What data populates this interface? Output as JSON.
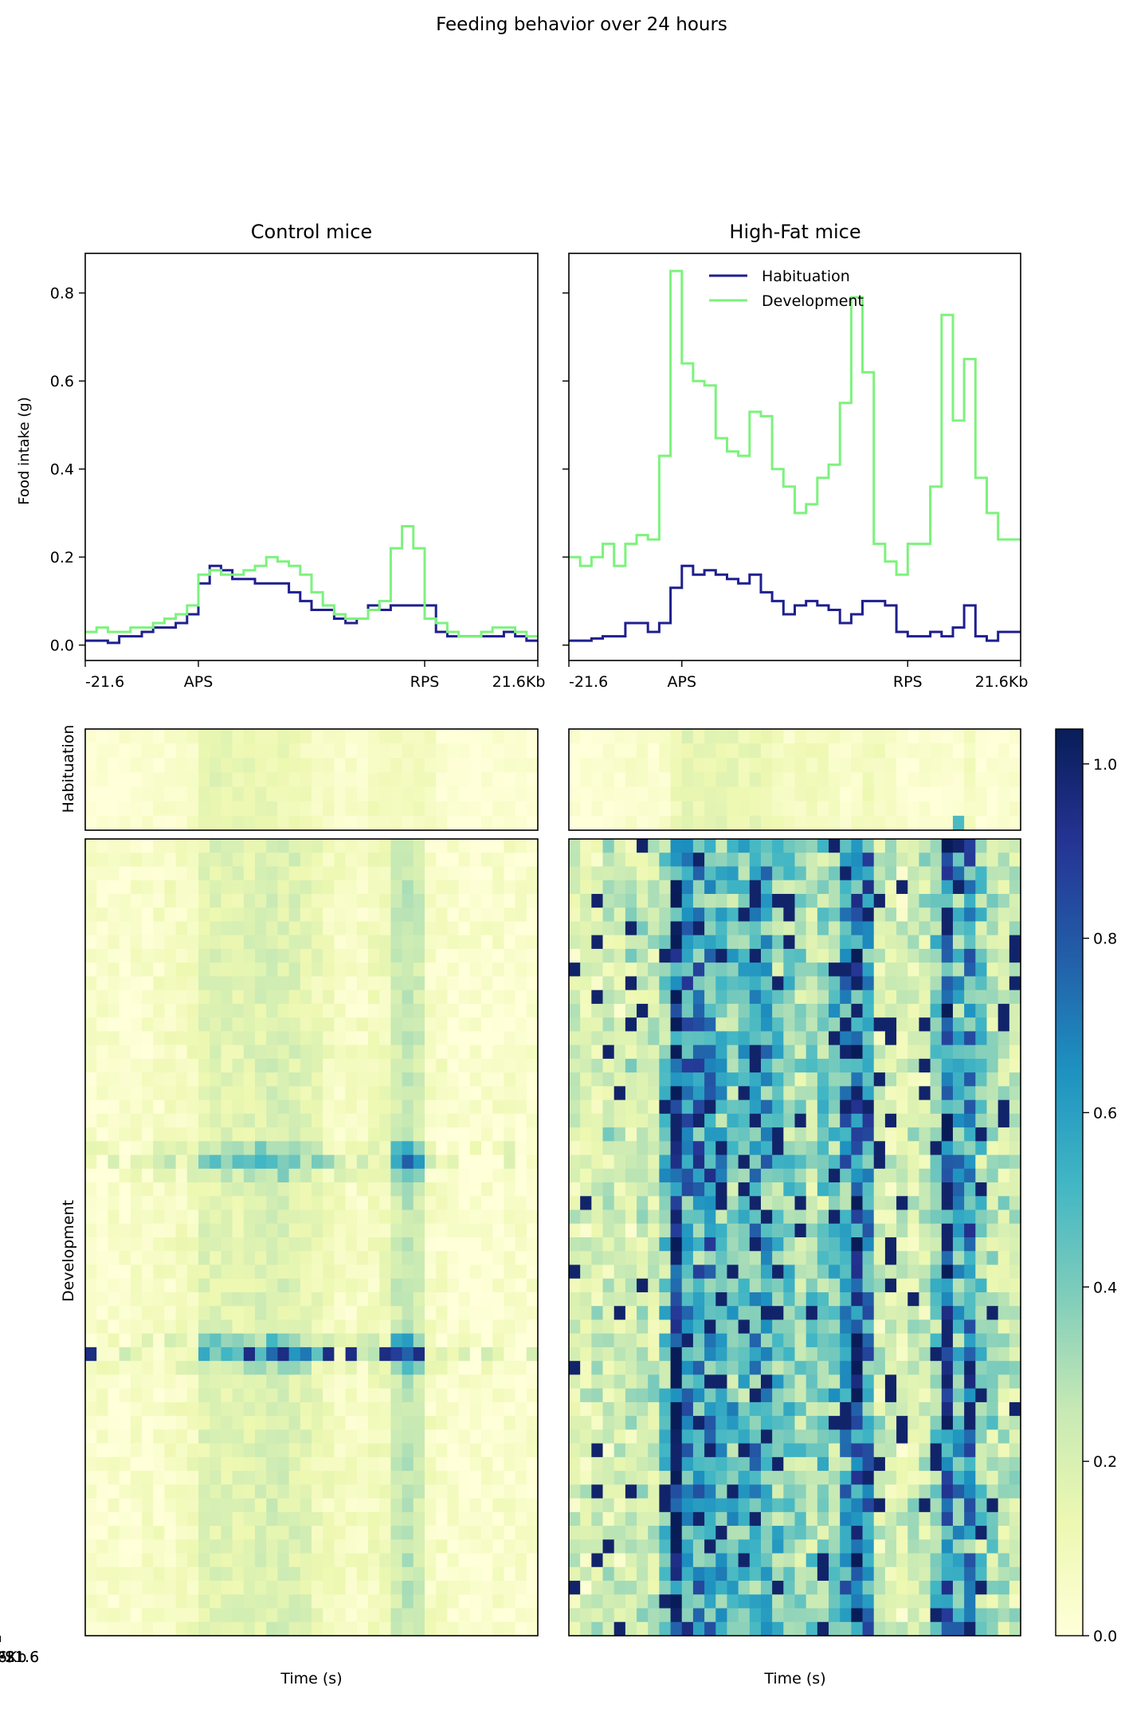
{
  "figure": {
    "suptitle": "Feeding behavior over 24 hours",
    "legend_position": "upper-center of right line panel"
  },
  "colors": {
    "habituation": "#1f1f8f",
    "development": "#7df27d",
    "heatmap_low": "#ffffd9",
    "heatmap_high": "#081d58"
  },
  "chart_data": [
    {
      "type": "line",
      "panel": "control-line",
      "title": "Control mice",
      "xlabel": "",
      "ylabel": "Food intake (g)",
      "ylim": [
        -0.035,
        0.89
      ],
      "yticks": [
        "0.0",
        "0.2",
        "0.4",
        "0.6",
        "0.8"
      ],
      "ytick_values": [
        0.0,
        0.2,
        0.4,
        0.6,
        0.8
      ],
      "xticks": [
        "-21.6",
        "APS",
        "RPS",
        "21.6Kb"
      ],
      "xtick_bins": [
        0,
        10,
        30,
        40
      ],
      "nbins": 40,
      "drawstyle": "steps",
      "series": [
        {
          "name": "Habituation",
          "color": "#1f1f8f",
          "values": [
            0.01,
            0.01,
            0.005,
            0.02,
            0.02,
            0.03,
            0.04,
            0.04,
            0.05,
            0.07,
            0.14,
            0.18,
            0.17,
            0.15,
            0.15,
            0.14,
            0.14,
            0.14,
            0.12,
            0.1,
            0.08,
            0.08,
            0.06,
            0.05,
            0.06,
            0.09,
            0.08,
            0.09,
            0.09,
            0.09,
            0.09,
            0.03,
            0.02,
            0.02,
            0.02,
            0.02,
            0.02,
            0.03,
            0.02,
            0.01
          ]
        },
        {
          "name": "Development",
          "color": "#7df27d",
          "values": [
            0.03,
            0.04,
            0.03,
            0.03,
            0.04,
            0.04,
            0.05,
            0.06,
            0.07,
            0.09,
            0.16,
            0.17,
            0.16,
            0.16,
            0.17,
            0.18,
            0.2,
            0.19,
            0.18,
            0.16,
            0.12,
            0.09,
            0.07,
            0.06,
            0.06,
            0.08,
            0.1,
            0.22,
            0.27,
            0.22,
            0.06,
            0.05,
            0.03,
            0.02,
            0.02,
            0.03,
            0.04,
            0.04,
            0.03,
            0.02
          ]
        }
      ]
    },
    {
      "type": "line",
      "panel": "highfat-line",
      "title": "High-Fat mice",
      "xlabel": "",
      "ylabel": "",
      "ylim": [
        -0.035,
        0.89
      ],
      "yticks": [],
      "xticks": [
        "-21.6",
        "APS",
        "RPS",
        "21.6Kb"
      ],
      "xtick_bins": [
        0,
        10,
        30,
        40
      ],
      "nbins": 40,
      "drawstyle": "steps",
      "legend": [
        "Habituation",
        "Development"
      ],
      "series": [
        {
          "name": "Habituation",
          "color": "#1f1f8f",
          "values": [
            0.01,
            0.01,
            0.015,
            0.02,
            0.02,
            0.05,
            0.05,
            0.03,
            0.05,
            0.13,
            0.18,
            0.16,
            0.17,
            0.16,
            0.15,
            0.14,
            0.16,
            0.12,
            0.1,
            0.07,
            0.09,
            0.1,
            0.09,
            0.08,
            0.05,
            0.07,
            0.1,
            0.1,
            0.09,
            0.03,
            0.02,
            0.02,
            0.03,
            0.02,
            0.04,
            0.09,
            0.02,
            0.01,
            0.03,
            0.03
          ]
        },
        {
          "name": "Development",
          "color": "#7df27d",
          "values": [
            0.2,
            0.18,
            0.2,
            0.23,
            0.18,
            0.23,
            0.25,
            0.24,
            0.43,
            0.85,
            0.64,
            0.6,
            0.59,
            0.47,
            0.44,
            0.43,
            0.53,
            0.52,
            0.4,
            0.36,
            0.3,
            0.32,
            0.38,
            0.41,
            0.55,
            0.79,
            0.62,
            0.23,
            0.19,
            0.16,
            0.23,
            0.23,
            0.36,
            0.75,
            0.51,
            0.65,
            0.38,
            0.3,
            0.24,
            0.24
          ]
        }
      ]
    },
    {
      "type": "heatmap",
      "panel": "control-heatmaps",
      "row_groups": [
        "Habituation",
        "Development"
      ],
      "ylabels": [
        "Habituation",
        "Development"
      ],
      "xlabel": "Time (s)",
      "xticks": [
        "-21.6",
        "APS",
        "RPS",
        "21.6Kb"
      ],
      "xtick_bins": [
        0,
        10,
        30,
        40
      ],
      "colormap": "YlGnBu",
      "clim": [
        0.0,
        1.04
      ],
      "habituation_rows": 7,
      "development_rows": 58,
      "description": "Per-mouse per-bin food intake, low values; elevated rows around development rows 22-24 and 36-38"
    },
    {
      "type": "heatmap",
      "panel": "highfat-heatmaps",
      "row_groups": [
        "Habituation",
        "Development"
      ],
      "xlabel": "Time (s)",
      "xticks": [
        "-21.6",
        "APS",
        "RPS",
        "21.6Kb"
      ],
      "xtick_bins": [
        0,
        10,
        30,
        40
      ],
      "colormap": "YlGnBu",
      "clim": [
        0.0,
        1.04
      ],
      "habituation_rows": 7,
      "development_rows": 58,
      "description": "High intake concentrated between APS and RPS bins"
    },
    {
      "type": "colorbar",
      "panel": "colorbar",
      "range": [
        0.0,
        1.04
      ],
      "ticks": [
        "0.0",
        "0.2",
        "0.4",
        "0.6",
        "0.8",
        "1.0"
      ],
      "tick_values": [
        0.0,
        0.2,
        0.4,
        0.6,
        0.8,
        1.0
      ]
    }
  ]
}
